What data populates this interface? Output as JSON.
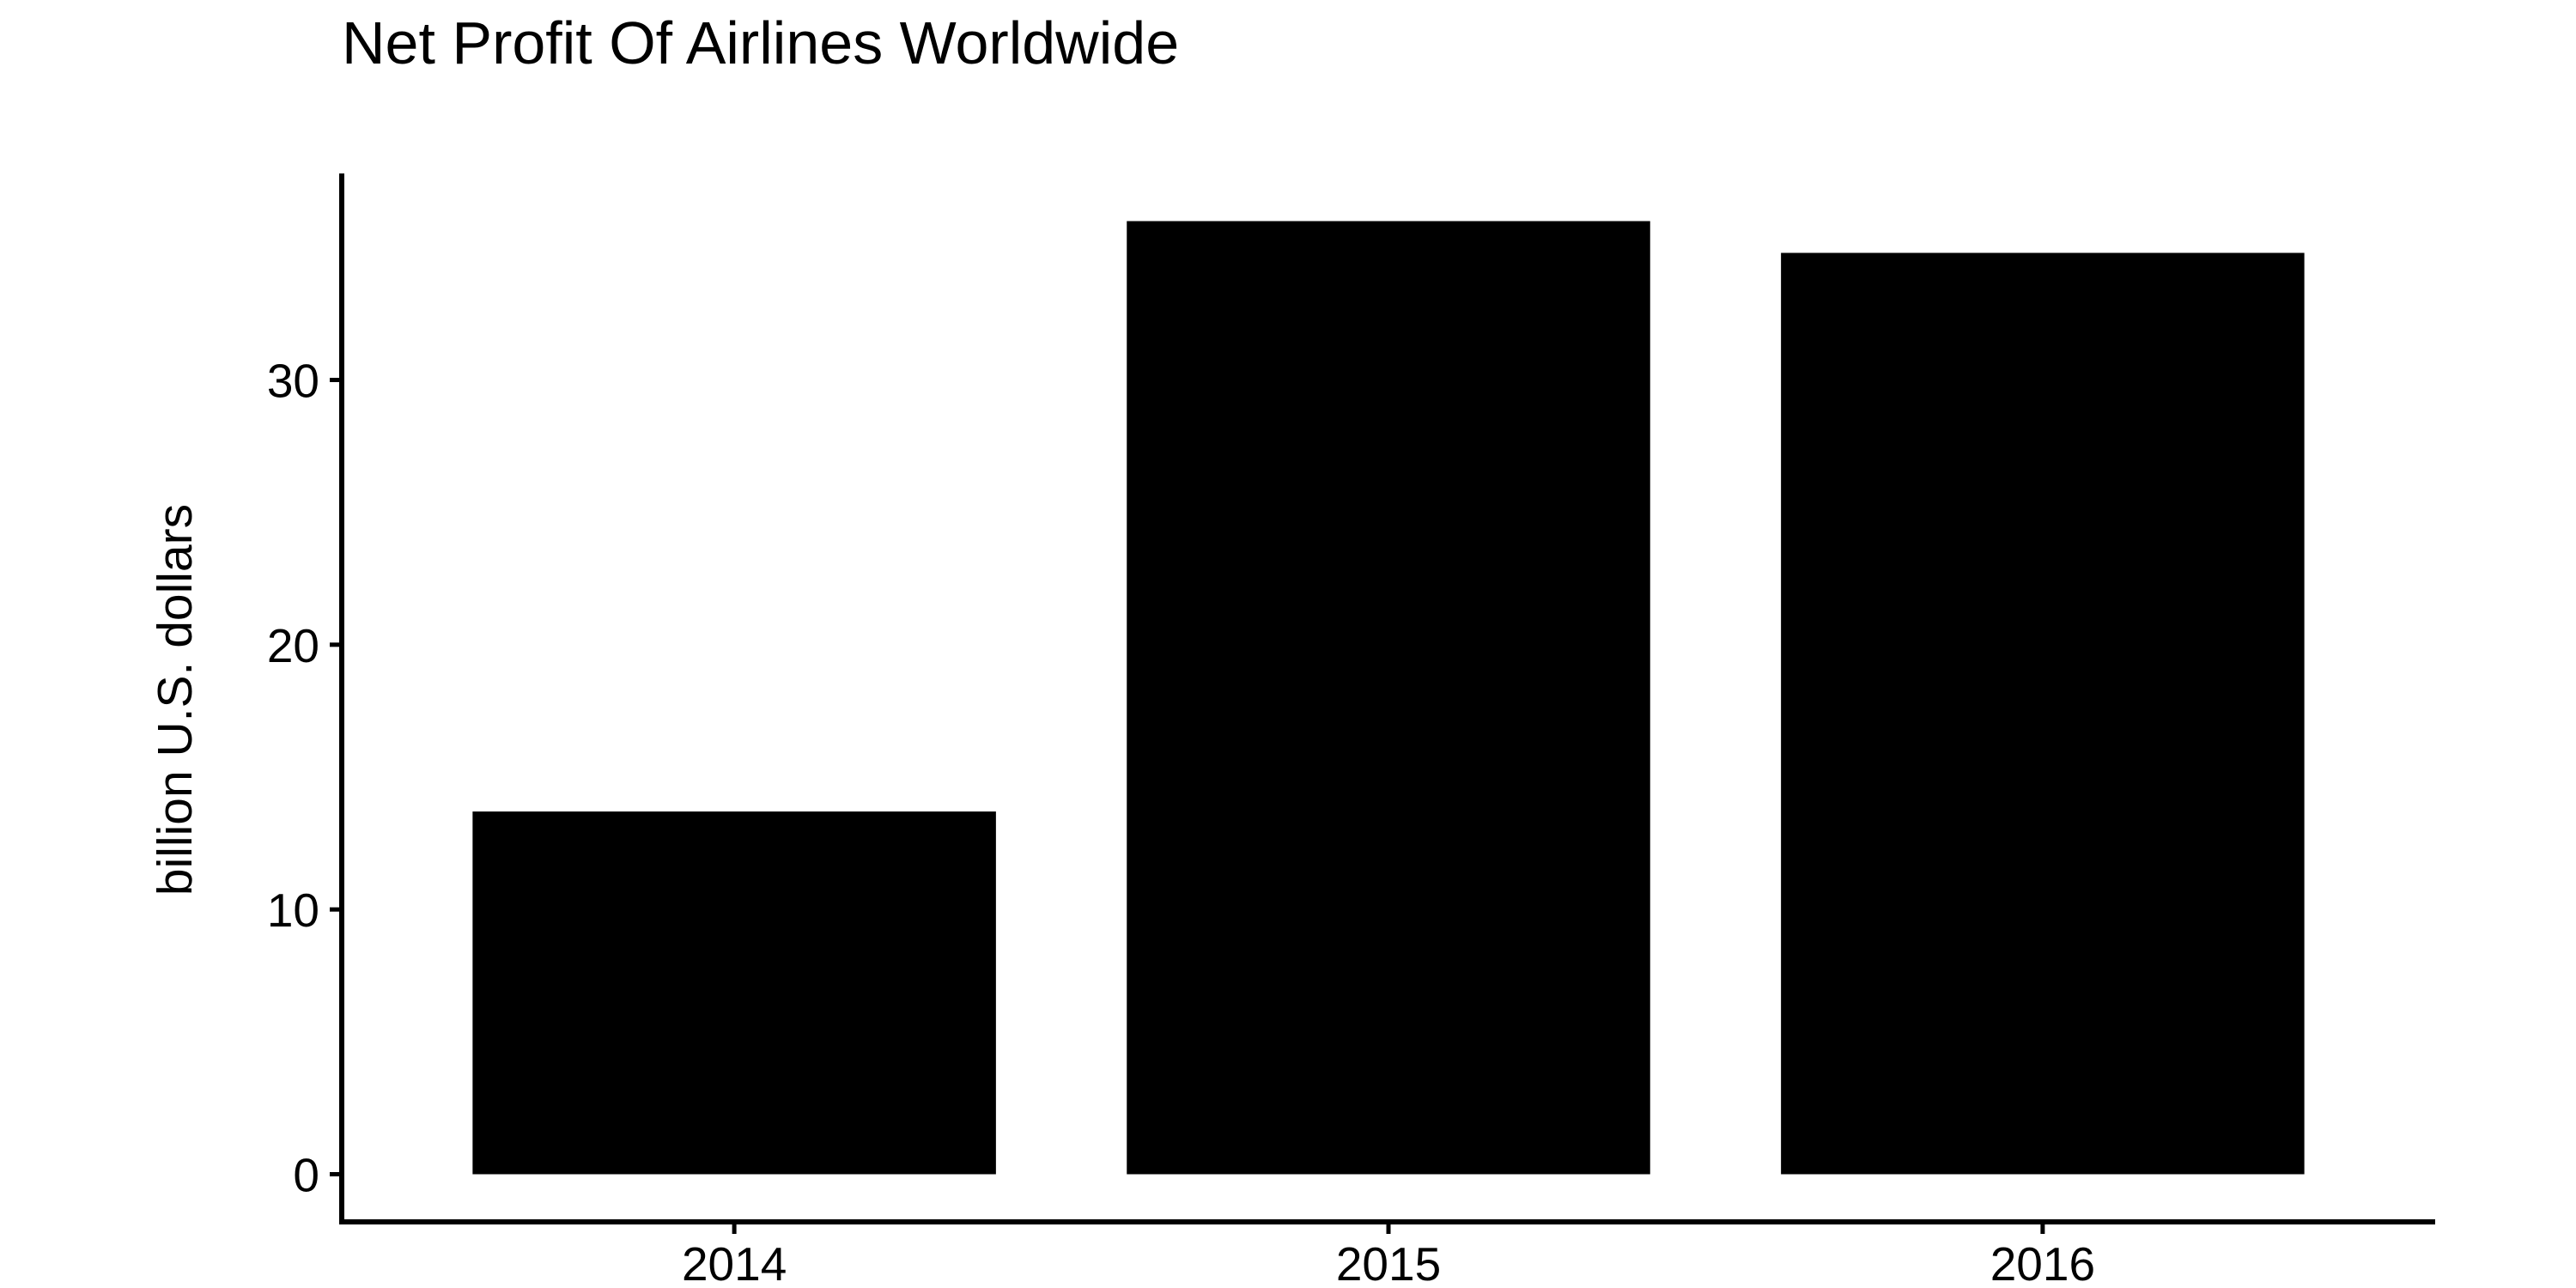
{
  "chart_data": {
    "type": "bar",
    "title": "Net Profit Of Airlines Worldwide",
    "xlabel": "",
    "ylabel": "billion U.S. dollars",
    "categories": [
      "2014",
      "2015",
      "2016"
    ],
    "values": [
      13.7,
      36.0,
      34.8
    ],
    "ylim": [
      -1.8,
      37.8
    ],
    "yticks": [
      0,
      10,
      20,
      30
    ],
    "bar_color": "#000000",
    "axis_color": "#000000",
    "grid": false,
    "legend": "none"
  }
}
